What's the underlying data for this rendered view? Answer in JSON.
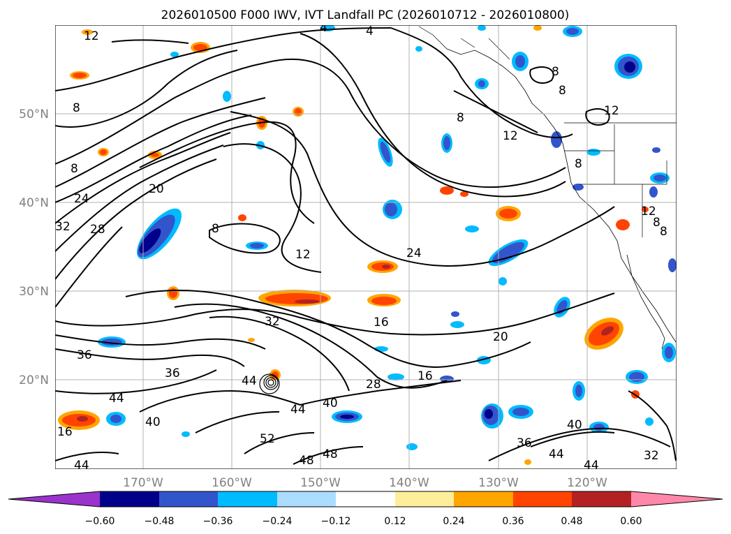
{
  "title": "2026010500 F000 IWV, IVT Landfall PC (2026010712 - 2026010800)",
  "lat_labels": [
    "50°N",
    "40°N",
    "30°N",
    "20°N"
  ],
  "lon_labels": [
    "170°W",
    "160°W",
    "150°W",
    "140°W",
    "130°W",
    "120°W"
  ],
  "colorbar": {
    "tick_labels": [
      "−0.60",
      "−0.48",
      "−0.36",
      "−0.24",
      "−0.12",
      "0.12",
      "0.24",
      "0.36",
      "0.48",
      "0.60"
    ],
    "colors": [
      "#9933cc",
      "#00008b",
      "#3355cc",
      "#00bbff",
      "#aaddff",
      "#ffffff",
      "#ffee99",
      "#ffa500",
      "#ff4400",
      "#b22222",
      "#ff88aa"
    ]
  },
  "contour_labels": [
    "12",
    "4",
    "4",
    "8",
    "8",
    "8",
    "8",
    "12",
    "12",
    "8",
    "24",
    "20",
    "28",
    "32",
    "8",
    "12",
    "8",
    "24",
    "16",
    "20",
    "32",
    "36",
    "36",
    "44",
    "28",
    "16",
    "40",
    "44",
    "44",
    "40",
    "52",
    "48",
    "48",
    "44",
    "40",
    "36",
    "44",
    "44",
    "32",
    "16",
    "12",
    "8",
    "8"
  ],
  "colors": {
    "contour": "#000000",
    "grid": "#b0b0b0",
    "tick_label": "#808080"
  }
}
